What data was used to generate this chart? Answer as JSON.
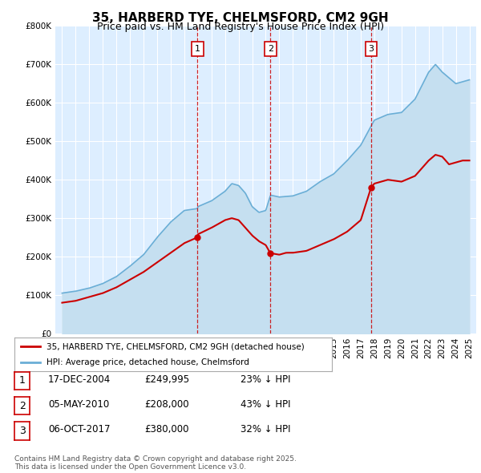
{
  "title": "35, HARBERD TYE, CHELMSFORD, CM2 9GH",
  "subtitle": "Price paid vs. HM Land Registry's House Price Index (HPI)",
  "bg_color": "#ffffff",
  "plot_bg_color": "#ddeeff",
  "hpi_color": "#6aaed6",
  "hpi_fill_color": "#c5dff0",
  "price_color": "#cc0000",
  "vline_color": "#cc0000",
  "transactions": [
    {
      "num": 1,
      "date": "17-DEC-2004",
      "price": 249995,
      "price_str": "£249,995",
      "pct": "23% ↓ HPI",
      "x": 2004.96
    },
    {
      "num": 2,
      "date": "05-MAY-2010",
      "price": 208000,
      "price_str": "£208,000",
      "pct": "43% ↓ HPI",
      "x": 2010.35
    },
    {
      "num": 3,
      "date": "06-OCT-2017",
      "price": 380000,
      "price_str": "£380,000",
      "pct": "32% ↓ HPI",
      "x": 2017.76
    }
  ],
  "legend_label_price": "35, HARBERD TYE, CHELMSFORD, CM2 9GH (detached house)",
  "legend_label_hpi": "HPI: Average price, detached house, Chelmsford",
  "footer": "Contains HM Land Registry data © Crown copyright and database right 2025.\nThis data is licensed under the Open Government Licence v3.0.",
  "ylim": [
    0,
    800000
  ],
  "yticks": [
    0,
    100000,
    200000,
    300000,
    400000,
    500000,
    600000,
    700000,
    800000
  ],
  "xlim": [
    1994.5,
    2025.5
  ]
}
